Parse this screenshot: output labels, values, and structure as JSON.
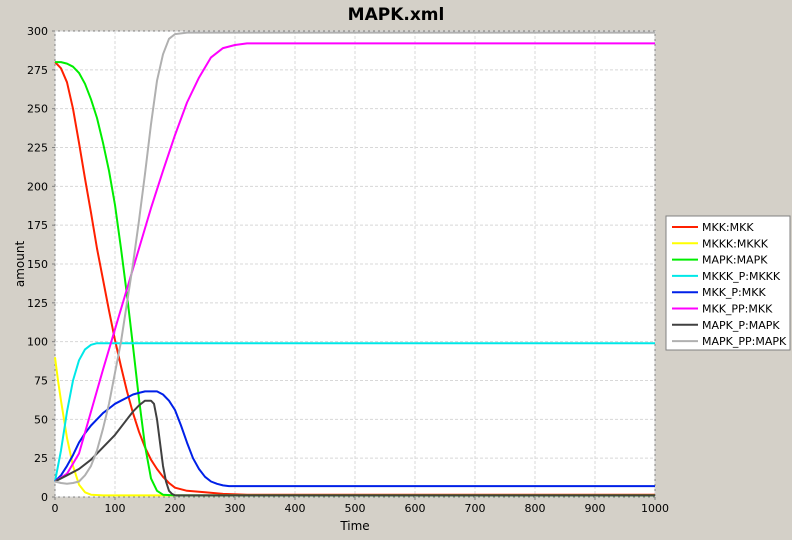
{
  "chart_data": {
    "type": "line",
    "title": "MAPK.xml",
    "xlabel": "Time",
    "ylabel": "amount",
    "xlim": [
      0,
      1000
    ],
    "ylim": [
      0,
      300
    ],
    "xticks": [
      0,
      100,
      200,
      300,
      400,
      500,
      600,
      700,
      800,
      900,
      1000
    ],
    "yticks": [
      0,
      25,
      50,
      75,
      100,
      125,
      150,
      175,
      200,
      225,
      250,
      275,
      300
    ],
    "grid": true,
    "legend_position": "right",
    "series": [
      {
        "name": "MKK:MKK",
        "color": "#ff2000",
        "points": [
          [
            0,
            280
          ],
          [
            10,
            276
          ],
          [
            20,
            267
          ],
          [
            30,
            250
          ],
          [
            40,
            228
          ],
          [
            50,
            205
          ],
          [
            60,
            183
          ],
          [
            70,
            160
          ],
          [
            80,
            140
          ],
          [
            90,
            120
          ],
          [
            100,
            101
          ],
          [
            110,
            84
          ],
          [
            120,
            68
          ],
          [
            130,
            54
          ],
          [
            140,
            42
          ],
          [
            150,
            32
          ],
          [
            160,
            24
          ],
          [
            170,
            18
          ],
          [
            180,
            13
          ],
          [
            190,
            9
          ],
          [
            200,
            6
          ],
          [
            220,
            4
          ],
          [
            250,
            3
          ],
          [
            280,
            2
          ],
          [
            320,
            1.5
          ],
          [
            1000,
            1.5
          ]
        ]
      },
      {
        "name": "MKKK:MKKK",
        "color": "#ffff00",
        "points": [
          [
            0,
            90
          ],
          [
            5,
            75
          ],
          [
            10,
            62
          ],
          [
            20,
            38
          ],
          [
            30,
            20
          ],
          [
            40,
            8
          ],
          [
            50,
            3
          ],
          [
            60,
            1.5
          ],
          [
            80,
            1
          ],
          [
            1000,
            1
          ]
        ]
      },
      {
        "name": "MAPK:MAPK",
        "color": "#00ee00",
        "points": [
          [
            0,
            280
          ],
          [
            10,
            280
          ],
          [
            20,
            279
          ],
          [
            30,
            277
          ],
          [
            40,
            273
          ],
          [
            50,
            266
          ],
          [
            60,
            256
          ],
          [
            70,
            244
          ],
          [
            80,
            228
          ],
          [
            90,
            210
          ],
          [
            100,
            188
          ],
          [
            110,
            160
          ],
          [
            120,
            130
          ],
          [
            130,
            97
          ],
          [
            140,
            63
          ],
          [
            150,
            33
          ],
          [
            160,
            12
          ],
          [
            170,
            4
          ],
          [
            180,
            1.5
          ],
          [
            200,
            1
          ],
          [
            1000,
            1
          ]
        ]
      },
      {
        "name": "MKKK_P:MKKK",
        "color": "#00e8e8",
        "points": [
          [
            0,
            10
          ],
          [
            10,
            30
          ],
          [
            20,
            55
          ],
          [
            30,
            75
          ],
          [
            40,
            88
          ],
          [
            50,
            95
          ],
          [
            60,
            98
          ],
          [
            70,
            99
          ],
          [
            1000,
            99
          ]
        ]
      },
      {
        "name": "MKK_P:MKK",
        "color": "#0020e8",
        "points": [
          [
            0,
            10
          ],
          [
            10,
            14
          ],
          [
            20,
            20
          ],
          [
            30,
            27
          ],
          [
            40,
            35
          ],
          [
            50,
            41
          ],
          [
            60,
            46
          ],
          [
            70,
            50
          ],
          [
            80,
            54
          ],
          [
            90,
            57
          ],
          [
            100,
            60
          ],
          [
            110,
            62
          ],
          [
            120,
            64
          ],
          [
            130,
            66
          ],
          [
            140,
            67
          ],
          [
            150,
            68
          ],
          [
            160,
            68
          ],
          [
            170,
            68
          ],
          [
            180,
            66
          ],
          [
            190,
            62
          ],
          [
            200,
            56
          ],
          [
            210,
            46
          ],
          [
            220,
            35
          ],
          [
            230,
            25
          ],
          [
            240,
            18
          ],
          [
            250,
            13
          ],
          [
            260,
            10
          ],
          [
            270,
            8.5
          ],
          [
            280,
            7.5
          ],
          [
            290,
            7
          ],
          [
            300,
            7
          ],
          [
            1000,
            7
          ]
        ]
      },
      {
        "name": "MKK_PP:MKK",
        "color": "#ff00ff",
        "points": [
          [
            0,
            10
          ],
          [
            20,
            15
          ],
          [
            40,
            28
          ],
          [
            60,
            55
          ],
          [
            80,
            82
          ],
          [
            100,
            108
          ],
          [
            120,
            134
          ],
          [
            140,
            160
          ],
          [
            160,
            186
          ],
          [
            180,
            210
          ],
          [
            200,
            233
          ],
          [
            220,
            254
          ],
          [
            240,
            270
          ],
          [
            260,
            283
          ],
          [
            280,
            289
          ],
          [
            300,
            291
          ],
          [
            320,
            292
          ],
          [
            340,
            292
          ],
          [
            1000,
            292
          ]
        ]
      },
      {
        "name": "MAPK_P:MAPK",
        "color": "#404040",
        "points": [
          [
            0,
            10
          ],
          [
            20,
            14
          ],
          [
            40,
            18
          ],
          [
            60,
            24
          ],
          [
            80,
            32
          ],
          [
            100,
            40
          ],
          [
            120,
            50
          ],
          [
            130,
            55
          ],
          [
            140,
            59
          ],
          [
            150,
            62
          ],
          [
            160,
            62
          ],
          [
            165,
            60
          ],
          [
            170,
            50
          ],
          [
            175,
            35
          ],
          [
            180,
            20
          ],
          [
            185,
            10
          ],
          [
            190,
            4
          ],
          [
            195,
            2
          ],
          [
            200,
            1
          ],
          [
            1000,
            1
          ]
        ]
      },
      {
        "name": "MAPK_PP:MAPK",
        "color": "#b0b0b0",
        "points": [
          [
            0,
            10
          ],
          [
            10,
            9
          ],
          [
            20,
            8.5
          ],
          [
            30,
            9
          ],
          [
            40,
            10
          ],
          [
            50,
            14
          ],
          [
            60,
            20
          ],
          [
            70,
            30
          ],
          [
            80,
            44
          ],
          [
            90,
            60
          ],
          [
            100,
            80
          ],
          [
            110,
            100
          ],
          [
            120,
            125
          ],
          [
            130,
            150
          ],
          [
            140,
            178
          ],
          [
            150,
            208
          ],
          [
            160,
            240
          ],
          [
            170,
            268
          ],
          [
            180,
            285
          ],
          [
            190,
            295
          ],
          [
            200,
            298
          ],
          [
            220,
            299
          ],
          [
            1000,
            299
          ]
        ]
      }
    ]
  }
}
